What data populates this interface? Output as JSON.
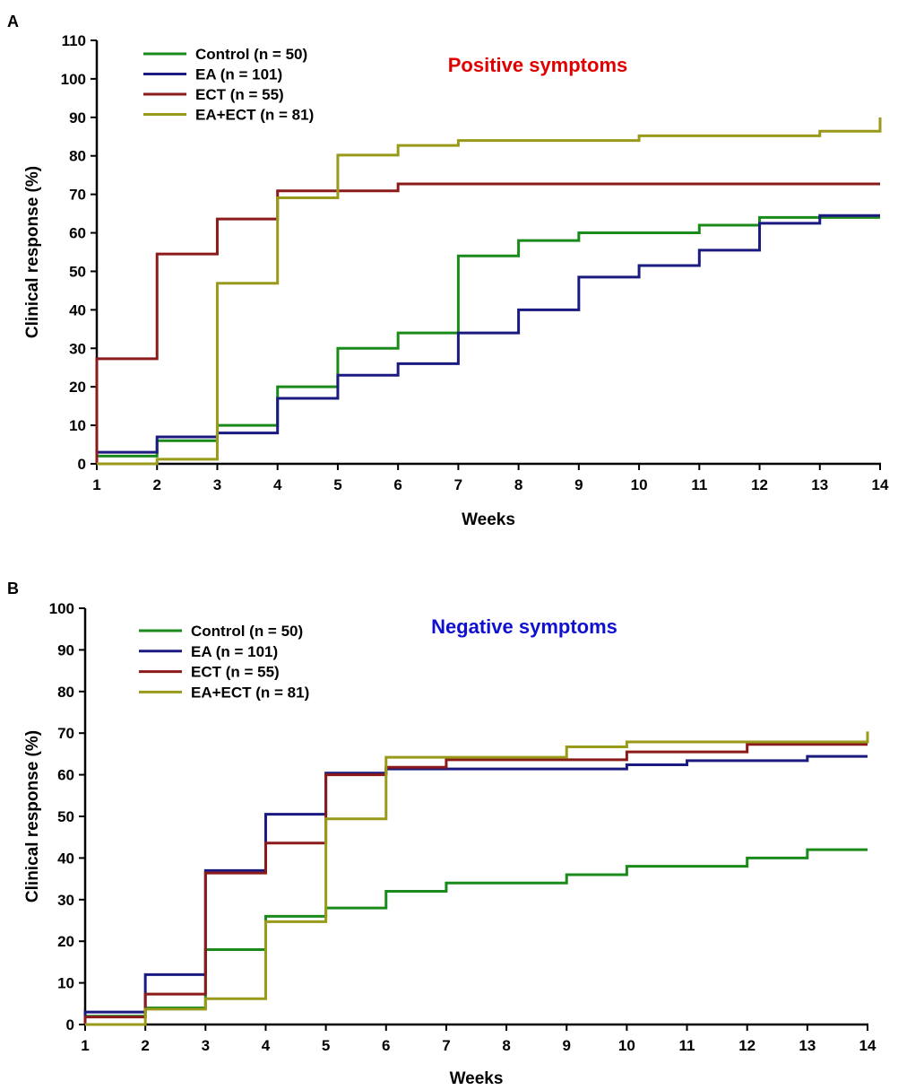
{
  "chart_data": [
    {
      "type": "line",
      "step": true,
      "panel_label": "A",
      "title": "Positive symptoms",
      "title_color": "#e00000",
      "xlabel": "Weeks",
      "ylabel": "Clinical response (%)",
      "x": [
        1,
        2,
        3,
        4,
        5,
        6,
        7,
        8,
        9,
        10,
        11,
        12,
        13,
        14
      ],
      "xlim": [
        1,
        14
      ],
      "ylim": [
        0,
        110
      ],
      "yticks": [
        0,
        10,
        20,
        30,
        40,
        50,
        60,
        70,
        80,
        90,
        100,
        110
      ],
      "legend": "top-left",
      "series": [
        {
          "name": "Control (n = 50)",
          "color": "#1a8a1a",
          "values": [
            2,
            6,
            10,
            20,
            30,
            34,
            54,
            58,
            60,
            60,
            62,
            64,
            64,
            64
          ]
        },
        {
          "name": "EA (n = 101)",
          "color": "#1a1a80",
          "values": [
            3,
            7,
            8,
            17,
            23,
            26,
            34,
            40,
            48.5,
            51.5,
            55.5,
            62.5,
            64.5,
            64.5
          ]
        },
        {
          "name": "ECT (n = 55)",
          "color": "#8b1a1a",
          "values": [
            27.3,
            54.5,
            63.6,
            70.9,
            70.9,
            72.7,
            72.7,
            72.7,
            72.7,
            72.7,
            72.7,
            72.7,
            72.7,
            72.7
          ]
        },
        {
          "name": "EA+ECT (n = 81)",
          "color": "#9a9a1a",
          "values": [
            0,
            1.2,
            46.9,
            69.1,
            80.2,
            82.7,
            84,
            84,
            84,
            85.2,
            85.2,
            85.2,
            86.4,
            90
          ]
        }
      ]
    },
    {
      "type": "line",
      "step": true,
      "panel_label": "B",
      "title": "Negative symptoms",
      "title_color": "#1010d0",
      "xlabel": "Weeks",
      "ylabel": "Clinical response (%)",
      "x": [
        1,
        2,
        3,
        4,
        5,
        6,
        7,
        8,
        9,
        10,
        11,
        12,
        13,
        14
      ],
      "xlim": [
        1,
        14
      ],
      "ylim": [
        0,
        100
      ],
      "yticks": [
        0,
        10,
        20,
        30,
        40,
        50,
        60,
        70,
        80,
        90,
        100
      ],
      "legend": "top-left",
      "series": [
        {
          "name": "Control (n = 50)",
          "color": "#1a8a1a",
          "values": [
            2,
            4,
            18,
            26,
            28,
            32,
            34,
            34,
            36,
            38,
            38,
            40,
            42,
            42
          ]
        },
        {
          "name": "EA  (n = 101)",
          "color": "#1a1a80",
          "values": [
            3,
            12,
            37,
            50.5,
            60.4,
            61.4,
            61.4,
            61.4,
            61.4,
            62.4,
            63.4,
            63.4,
            64.4,
            64.4
          ]
        },
        {
          "name": "ECT (n = 55)",
          "color": "#8b1a1a",
          "values": [
            1.8,
            7.3,
            36.4,
            43.6,
            60,
            61.8,
            63.6,
            63.6,
            63.6,
            65.5,
            65.5,
            67.3,
            67.3,
            67.3
          ]
        },
        {
          "name": "EA+ECT (n = 81)",
          "color": "#9a9a1a",
          "values": [
            0,
            3.7,
            6.2,
            24.7,
            49.4,
            64.2,
            64.2,
            64.2,
            66.7,
            67.9,
            67.9,
            67.9,
            67.9,
            70.4
          ]
        }
      ]
    }
  ]
}
